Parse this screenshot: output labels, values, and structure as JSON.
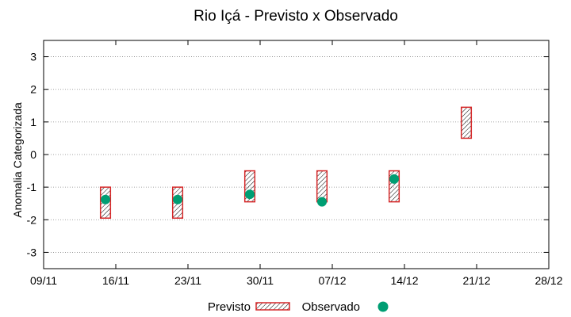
{
  "chart_data": {
    "type": "range-bar-with-points",
    "title": "Rio Içá - Previsto x Observado",
    "xlabel": "",
    "ylabel": "Anomalia Categorizada",
    "ylim": [
      -3.5,
      3.5
    ],
    "yticks": [
      -3,
      -2,
      -1,
      0,
      1,
      2,
      3
    ],
    "xlim_days": [
      0,
      49
    ],
    "xticks": [
      {
        "day": 0,
        "label": "09/11"
      },
      {
        "day": 7,
        "label": "16/11"
      },
      {
        "day": 14,
        "label": "23/11"
      },
      {
        "day": 21,
        "label": "30/11"
      },
      {
        "day": 28,
        "label": "07/12"
      },
      {
        "day": 35,
        "label": "14/12"
      },
      {
        "day": 42,
        "label": "21/12"
      },
      {
        "day": 49,
        "label": "28/12"
      }
    ],
    "grid": true,
    "legend_position": "bottom",
    "series": [
      {
        "name": "Previsto",
        "style": "hatched-box",
        "color": "#d62728",
        "points": [
          {
            "day": 6.0,
            "low": -1.95,
            "high": -1.0
          },
          {
            "day": 13.0,
            "low": -1.95,
            "high": -1.0
          },
          {
            "day": 20.0,
            "low": -1.45,
            "high": -0.5
          },
          {
            "day": 27.0,
            "low": -1.45,
            "high": -0.5
          },
          {
            "day": 34.0,
            "low": -1.45,
            "high": -0.5
          },
          {
            "day": 41.0,
            "low": 0.5,
            "high": 1.45
          }
        ]
      },
      {
        "name": "Observado",
        "style": "point",
        "color": "#009e73",
        "points": [
          {
            "day": 6.0,
            "value": -1.38
          },
          {
            "day": 13.0,
            "value": -1.38
          },
          {
            "day": 20.0,
            "value": -1.22
          },
          {
            "day": 27.0,
            "value": -1.45
          },
          {
            "day": 34.0,
            "value": -0.75
          }
        ]
      }
    ]
  }
}
